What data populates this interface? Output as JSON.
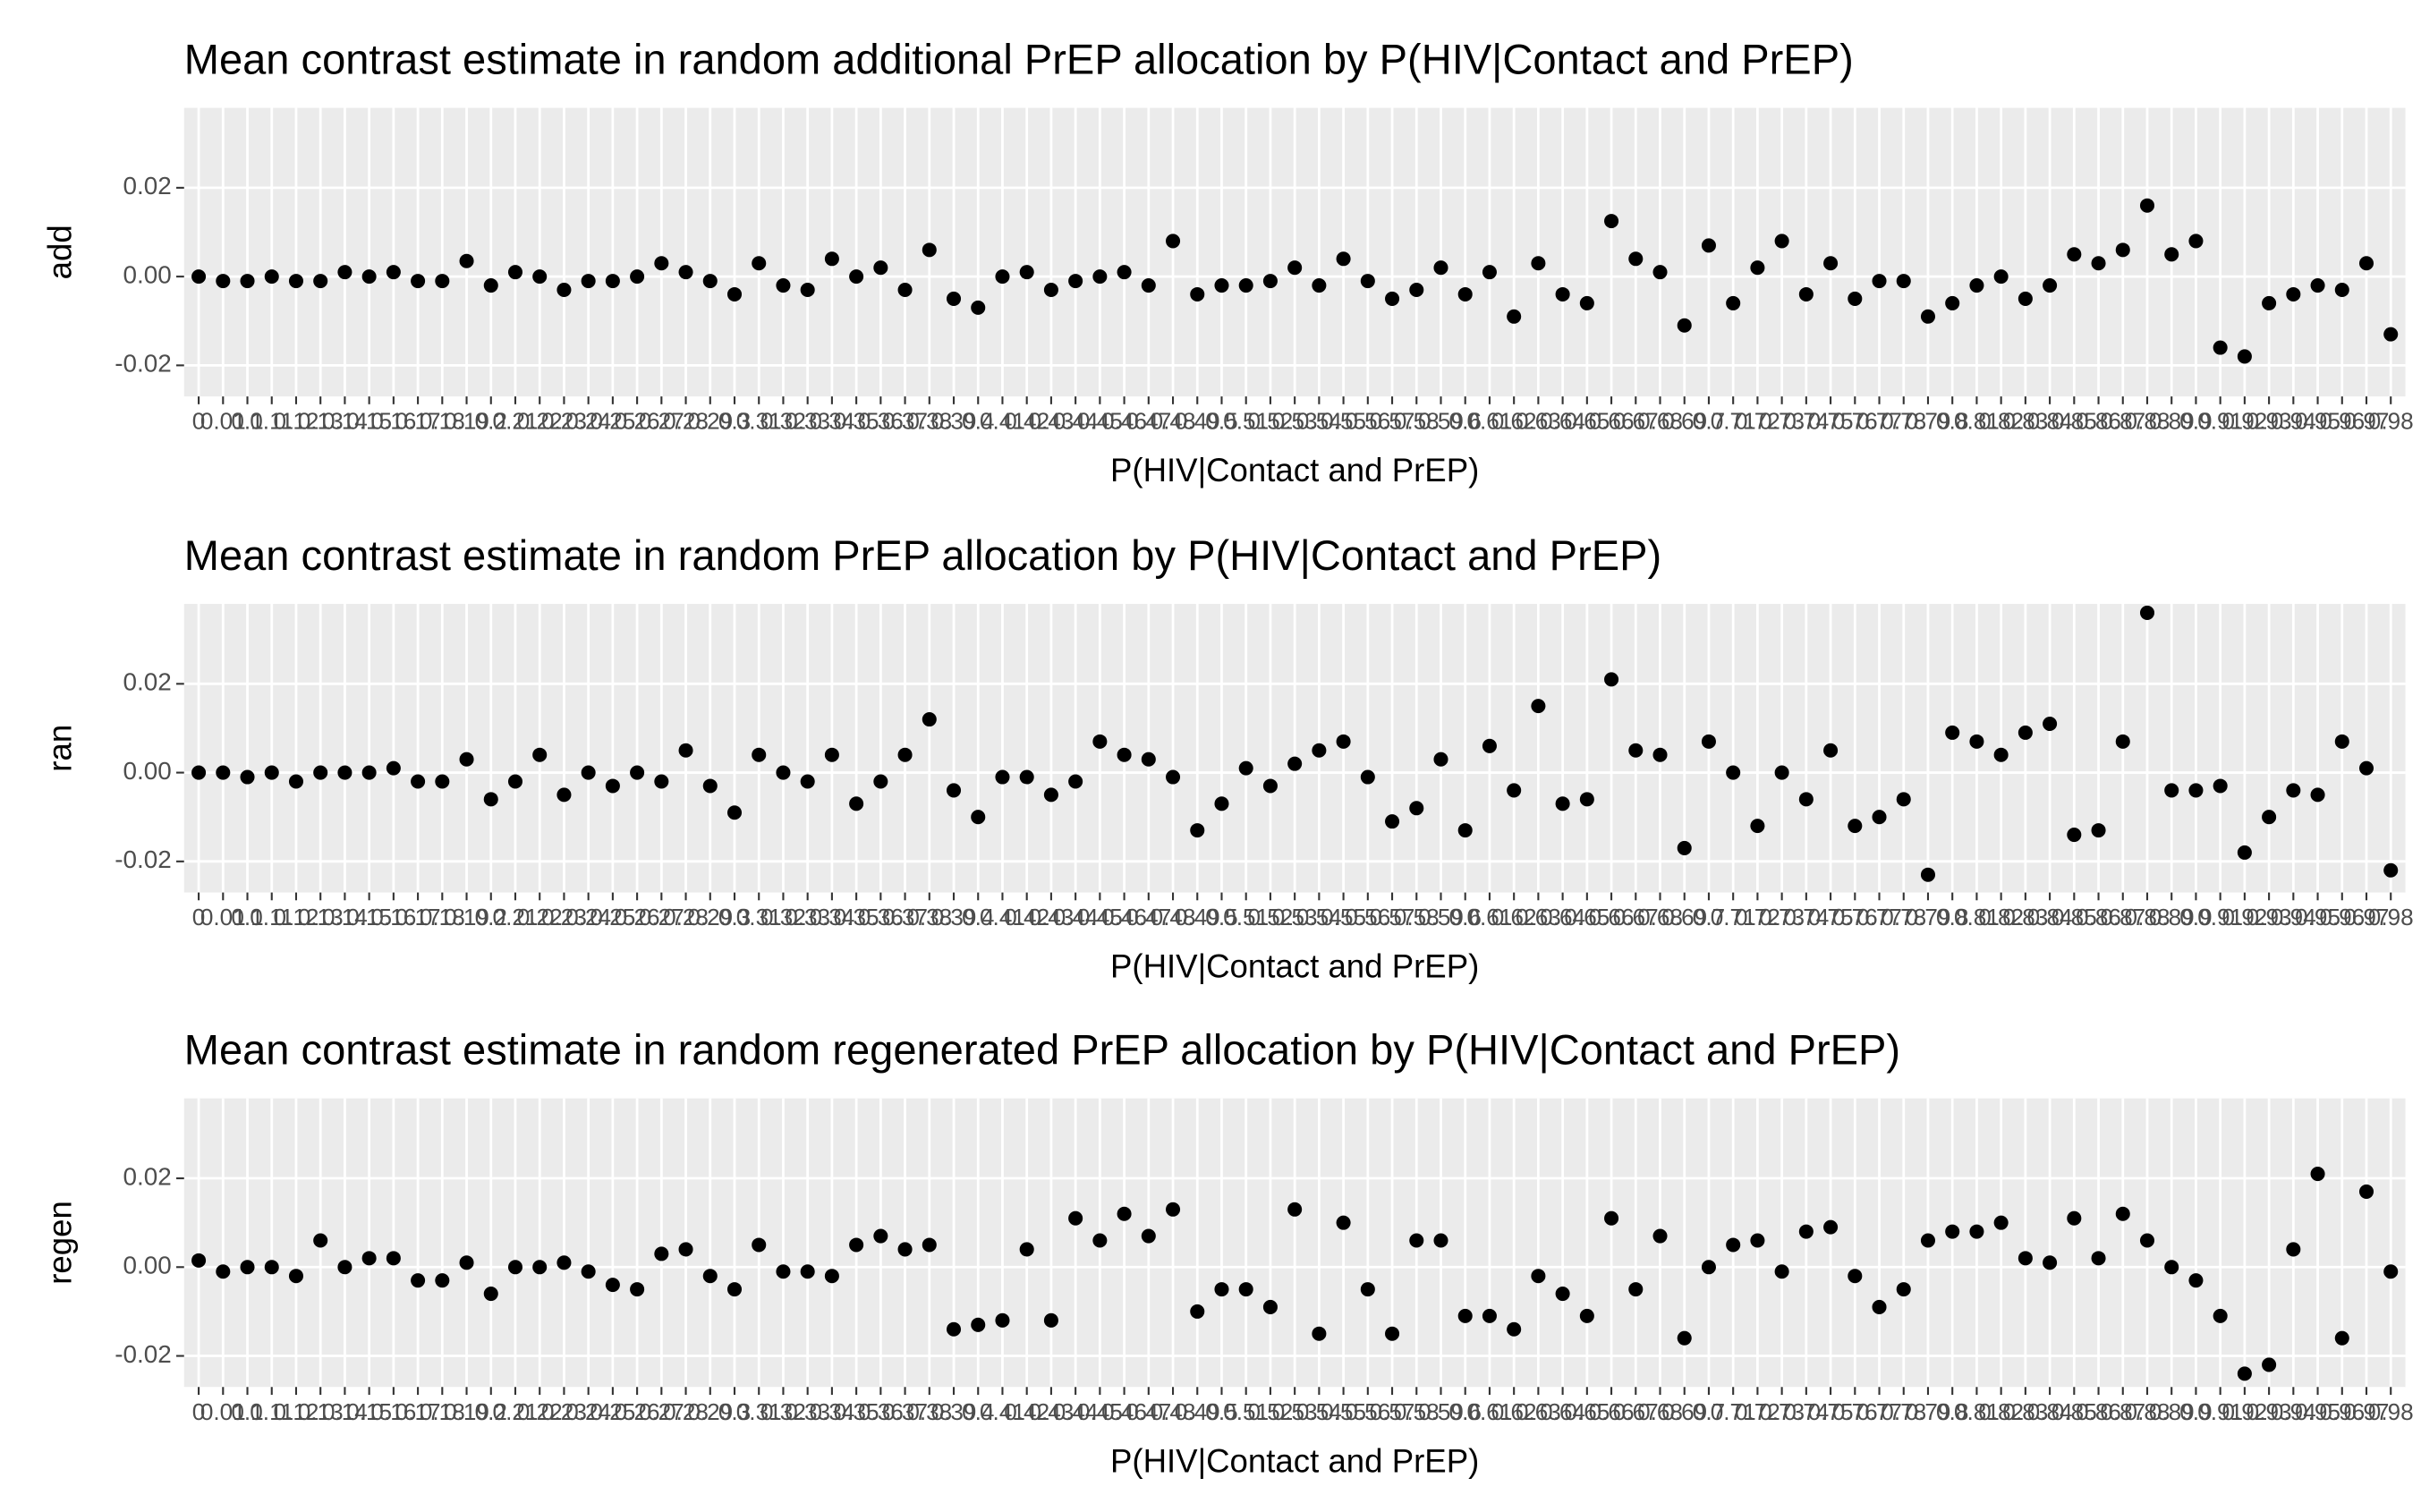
{
  "chart_data": [
    {
      "type": "scatter",
      "title": "Mean contrast estimate in random additional PrEP allocation by P(HIV|Contact and PrEP)",
      "xlabel": "P(HIV|Contact and PrEP)",
      "ylabel": "add",
      "color": "#000000",
      "categories": [
        "0",
        "0.01",
        "0.1",
        "0.11",
        "0.12",
        "0.13",
        "0.14",
        "0.15",
        "0.16",
        "0.17",
        "0.18",
        "0.19",
        "0.2",
        "0.21",
        "0.22",
        "0.23",
        "0.24",
        "0.25",
        "0.26",
        "0.27",
        "0.28",
        "0.29",
        "0.3",
        "0.31",
        "0.32",
        "0.33",
        "0.34",
        "0.35",
        "0.36",
        "0.37",
        "0.38",
        "0.39",
        "0.4",
        "0.41",
        "0.42",
        "0.43",
        "0.44",
        "0.45",
        "0.46",
        "0.47",
        "0.48",
        "0.49",
        "0.5",
        "0.51",
        "0.52",
        "0.53",
        "0.54",
        "0.55",
        "0.56",
        "0.57",
        "0.58",
        "0.59",
        "0.6",
        "0.61",
        "0.62",
        "0.63",
        "0.64",
        "0.65",
        "0.66",
        "0.67",
        "0.68",
        "0.69",
        "0.7",
        "0.71",
        "0.72",
        "0.73",
        "0.74",
        "0.75",
        "0.76",
        "0.77",
        "0.78",
        "0.79",
        "0.8",
        "0.81",
        "0.82",
        "0.83",
        "0.84",
        "0.85",
        "0.86",
        "0.87",
        "0.88",
        "0.89",
        "0.9",
        "0.91",
        "0.92",
        "0.93",
        "0.94",
        "0.95",
        "0.96",
        "0.97",
        "0.98"
      ],
      "values": [
        0,
        -0.001,
        -0.001,
        0,
        -0.001,
        -0.001,
        0.001,
        0,
        0.001,
        -0.001,
        -0.001,
        0.0035,
        -0.002,
        0.001,
        0,
        -0.003,
        -0.001,
        -0.001,
        0,
        0.003,
        0.001,
        -0.001,
        -0.004,
        0.003,
        -0.002,
        -0.003,
        0.004,
        0,
        0.002,
        -0.003,
        0.006,
        -0.005,
        -0.007,
        0,
        0.001,
        -0.003,
        -0.001,
        0,
        0.001,
        -0.002,
        0.008,
        -0.004,
        -0.002,
        -0.002,
        -0.001,
        0.002,
        -0.002,
        0.004,
        -0.001,
        -0.005,
        -0.003,
        0.002,
        -0.004,
        0.001,
        -0.009,
        0.003,
        -0.004,
        -0.006,
        0.0125,
        0.004,
        0.001,
        -0.011,
        0.007,
        -0.006,
        0.002,
        0.008,
        -0.004,
        0.003,
        -0.005,
        -0.001,
        -0.001,
        -0.009,
        -0.006,
        -0.002,
        0,
        -0.005,
        -0.002,
        0.005,
        0.003,
        0.006,
        0.016,
        0.005,
        0.008,
        -0.016,
        -0.018,
        -0.006,
        -0.004,
        -0.002,
        -0.003,
        0.003,
        -0.013
      ],
      "ylim": [
        -0.027,
        0.038
      ],
      "yticks": [
        -0.02,
        {
          "value": 0,
          "label": "0.00"
        },
        0.02
      ],
      "grid": true
    },
    {
      "type": "scatter",
      "title": "Mean contrast estimate in random PrEP allocation by P(HIV|Contact and PrEP)",
      "xlabel": "P(HIV|Contact and PrEP)",
      "ylabel": "ran",
      "color": "#000000",
      "categories": [
        "0",
        "0.01",
        "0.1",
        "0.11",
        "0.12",
        "0.13",
        "0.14",
        "0.15",
        "0.16",
        "0.17",
        "0.18",
        "0.19",
        "0.2",
        "0.21",
        "0.22",
        "0.23",
        "0.24",
        "0.25",
        "0.26",
        "0.27",
        "0.28",
        "0.29",
        "0.3",
        "0.31",
        "0.32",
        "0.33",
        "0.34",
        "0.35",
        "0.36",
        "0.37",
        "0.38",
        "0.39",
        "0.4",
        "0.41",
        "0.42",
        "0.43",
        "0.44",
        "0.45",
        "0.46",
        "0.47",
        "0.48",
        "0.49",
        "0.5",
        "0.51",
        "0.52",
        "0.53",
        "0.54",
        "0.55",
        "0.56",
        "0.57",
        "0.58",
        "0.59",
        "0.6",
        "0.61",
        "0.62",
        "0.63",
        "0.64",
        "0.65",
        "0.66",
        "0.67",
        "0.68",
        "0.69",
        "0.7",
        "0.71",
        "0.72",
        "0.73",
        "0.74",
        "0.75",
        "0.76",
        "0.77",
        "0.78",
        "0.79",
        "0.8",
        "0.81",
        "0.82",
        "0.83",
        "0.84",
        "0.85",
        "0.86",
        "0.87",
        "0.88",
        "0.89",
        "0.9",
        "0.91",
        "0.92",
        "0.93",
        "0.94",
        "0.95",
        "0.96",
        "0.97",
        "0.98"
      ],
      "values": [
        0,
        0,
        -0.001,
        0,
        -0.002,
        0,
        0,
        0,
        0.001,
        -0.002,
        -0.002,
        0.003,
        -0.006,
        -0.002,
        0.004,
        -0.005,
        0,
        -0.003,
        0,
        -0.002,
        0.005,
        -0.003,
        -0.009,
        0.004,
        0,
        -0.002,
        0.004,
        -0.007,
        -0.002,
        0.004,
        0.012,
        -0.004,
        -0.01,
        -0.001,
        -0.001,
        -0.005,
        -0.002,
        0.007,
        0.004,
        0.003,
        -0.001,
        -0.013,
        -0.007,
        0.001,
        -0.003,
        0.002,
        0.005,
        0.007,
        -0.001,
        -0.011,
        -0.008,
        0.003,
        -0.013,
        0.006,
        -0.004,
        0.015,
        -0.007,
        -0.006,
        0.021,
        0.005,
        0.004,
        -0.017,
        0.007,
        0,
        -0.012,
        0,
        -0.006,
        0.005,
        -0.012,
        -0.01,
        -0.006,
        -0.023,
        0.009,
        0.007,
        0.004,
        0.009,
        0.011,
        -0.014,
        -0.013,
        0.007,
        0.036,
        -0.004,
        -0.004,
        -0.003,
        -0.018,
        -0.01,
        -0.004,
        -0.005,
        0.007,
        0.001,
        -0.022
      ],
      "ylim": [
        -0.027,
        0.038
      ],
      "yticks": [
        -0.02,
        {
          "value": 0,
          "label": "0.00"
        },
        0.02
      ],
      "grid": true
    },
    {
      "type": "scatter",
      "title": "Mean contrast estimate in random regenerated PrEP allocation by P(HIV|Contact and PrEP)",
      "xlabel": "P(HIV|Contact and PrEP)",
      "ylabel": "regen",
      "color": "#000000",
      "categories": [
        "0",
        "0.01",
        "0.1",
        "0.11",
        "0.12",
        "0.13",
        "0.14",
        "0.15",
        "0.16",
        "0.17",
        "0.18",
        "0.19",
        "0.2",
        "0.21",
        "0.22",
        "0.23",
        "0.24",
        "0.25",
        "0.26",
        "0.27",
        "0.28",
        "0.29",
        "0.3",
        "0.31",
        "0.32",
        "0.33",
        "0.34",
        "0.35",
        "0.36",
        "0.37",
        "0.38",
        "0.39",
        "0.4",
        "0.41",
        "0.42",
        "0.43",
        "0.44",
        "0.45",
        "0.46",
        "0.47",
        "0.48",
        "0.49",
        "0.5",
        "0.51",
        "0.52",
        "0.53",
        "0.54",
        "0.55",
        "0.56",
        "0.57",
        "0.58",
        "0.59",
        "0.6",
        "0.61",
        "0.62",
        "0.63",
        "0.64",
        "0.65",
        "0.66",
        "0.67",
        "0.68",
        "0.69",
        "0.7",
        "0.71",
        "0.72",
        "0.73",
        "0.74",
        "0.75",
        "0.76",
        "0.77",
        "0.78",
        "0.79",
        "0.8",
        "0.81",
        "0.82",
        "0.83",
        "0.84",
        "0.85",
        "0.86",
        "0.87",
        "0.88",
        "0.89",
        "0.9",
        "0.91",
        "0.92",
        "0.93",
        "0.94",
        "0.95",
        "0.96",
        "0.97",
        "0.98"
      ],
      "values": [
        0.0015,
        -0.001,
        0,
        0,
        -0.002,
        0.006,
        0,
        0.002,
        0.002,
        -0.003,
        -0.003,
        0.001,
        -0.006,
        0,
        0,
        0.001,
        -0.001,
        -0.004,
        -0.005,
        0.003,
        0.004,
        -0.002,
        -0.005,
        0.005,
        -0.001,
        -0.001,
        -0.002,
        0.005,
        0.007,
        0.004,
        0.005,
        -0.014,
        -0.013,
        -0.012,
        0.004,
        -0.012,
        0.011,
        0.006,
        0.012,
        0.007,
        0.013,
        -0.01,
        -0.005,
        -0.005,
        -0.009,
        0.013,
        -0.015,
        0.01,
        -0.005,
        -0.015,
        0.006,
        0.006,
        -0.011,
        -0.011,
        -0.014,
        -0.002,
        -0.006,
        -0.011,
        0.011,
        -0.005,
        0.007,
        -0.016,
        0,
        0.005,
        0.006,
        -0.001,
        0.008,
        0.009,
        -0.002,
        -0.009,
        -0.005,
        0.006,
        0.008,
        0.008,
        0.01,
        0.002,
        0.001,
        0.011,
        0.002,
        0.012,
        0.006,
        0,
        -0.003,
        -0.011,
        -0.024,
        -0.022,
        0.004,
        0.021,
        -0.016,
        0.017,
        -0.001
      ],
      "ylim": [
        -0.027,
        0.038
      ],
      "yticks": [
        -0.02,
        {
          "value": 0,
          "label": "0.00"
        },
        0.02
      ],
      "grid": true
    }
  ]
}
